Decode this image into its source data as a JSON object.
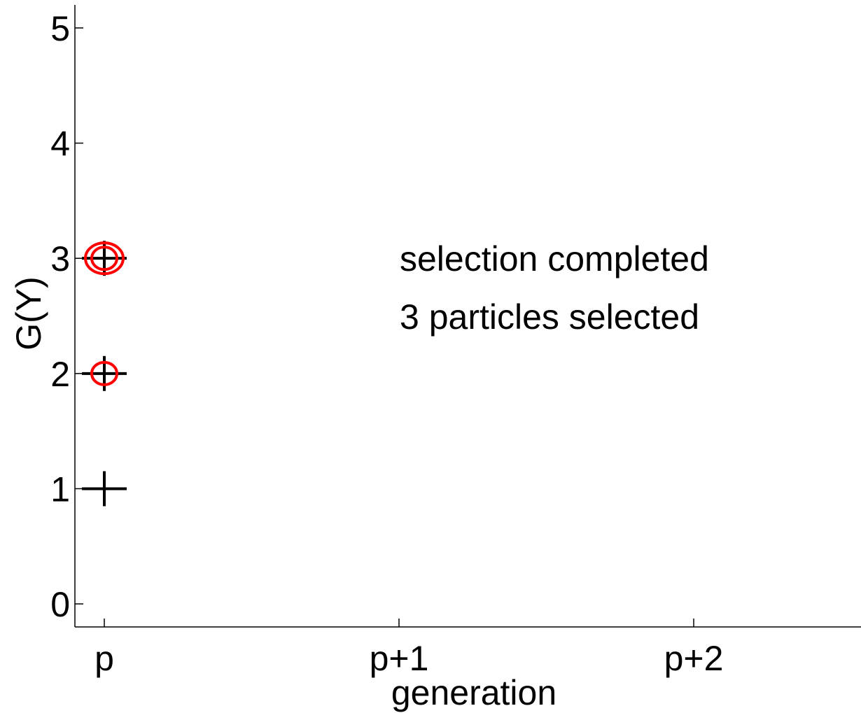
{
  "chart_data": {
    "type": "scatter",
    "title": "",
    "xlabel": "generation",
    "ylabel": "G(Y)",
    "x_categories": [
      "p",
      "p+1",
      "p+2"
    ],
    "y_ticks": [
      "0",
      "1",
      "2",
      "3",
      "4",
      "5"
    ],
    "ylim": [
      -0.2,
      5.2
    ],
    "grid": false,
    "series": [
      {
        "marker": "plus",
        "color": "#000000",
        "points": [
          {
            "x": "p",
            "y": 1
          },
          {
            "x": "p",
            "y": 2
          },
          {
            "x": "p",
            "y": 3
          }
        ]
      },
      {
        "marker": "circle",
        "color": "#ff0000",
        "points": [
          {
            "x": "p",
            "y": 2,
            "count": 1
          },
          {
            "x": "p",
            "y": 3,
            "count": 2
          }
        ]
      }
    ],
    "annotations": [
      "selection completed",
      "3 particles selected"
    ]
  }
}
